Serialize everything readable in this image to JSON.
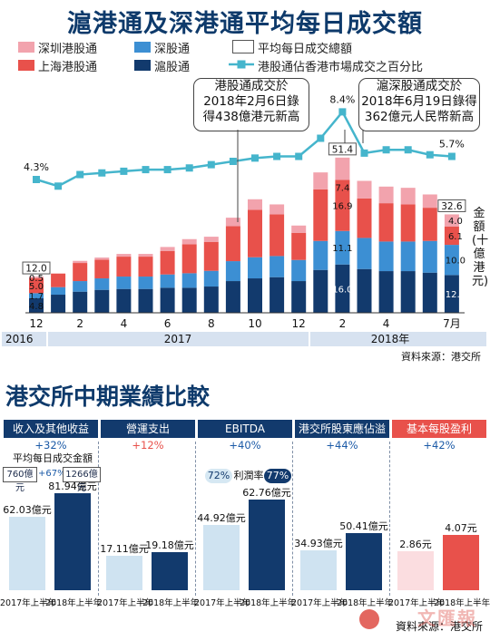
{
  "title": "滬港通及深港通平均每日成交額",
  "legend": {
    "shenzhen_hk": "深圳港股通",
    "sz_connect": "深股通",
    "avg_total": "平均每日成交總額",
    "shanghai_hk": "上海港股通",
    "sh_connect": "滬股通",
    "hk_share": "港股通佔香港市場成交之百分比"
  },
  "colors": {
    "shenzhen_hk": "#f2a3ad",
    "shanghai_hk": "#e8514b",
    "sz_connect": "#3c8fd3",
    "sh_connect": "#123a6d",
    "line": "#45b5cc",
    "timeline_bg": "#d7e2f0"
  },
  "callouts": {
    "left": [
      "港股通成交於",
      "2018年2月6日錄",
      "得438億港元新高"
    ],
    "right": [
      "滬深股通成交於",
      "2018年6月19日錄得",
      "362億元人民幣新高"
    ]
  },
  "y_axis_label": "金額(十億港元)",
  "chart_data": {
    "type": "bar",
    "stacked": true,
    "title": "滬港通及深港通平均每日成交額",
    "ylabel": "金額(十億港元)",
    "ylim": [
      0,
      60
    ],
    "categories": [
      "2016-12",
      "2017-01",
      "2017-02",
      "2017-03",
      "2017-04",
      "2017-05",
      "2017-06",
      "2017-07",
      "2017-08",
      "2017-09",
      "2017-10",
      "2017-11",
      "2017-12",
      "2018-01",
      "2018-02",
      "2018-03",
      "2018-04",
      "2018-05",
      "2018-06",
      "2018-07"
    ],
    "x_tick_labels": [
      "12",
      "",
      "2",
      "",
      "4",
      "",
      "6",
      "",
      "8",
      "",
      "10",
      "",
      "12",
      "",
      "2",
      "",
      "4",
      "",
      "",
      "7月"
    ],
    "year_labels": [
      "2016",
      "2017",
      "2018年"
    ],
    "series": [
      {
        "name": "滬股通",
        "values": [
          4.8,
          6.0,
          7.0,
          7.6,
          7.9,
          7.9,
          8.3,
          8.3,
          8.7,
          10.5,
          11.4,
          11.8,
          10.5,
          14.2,
          16.0,
          14.5,
          13.8,
          13.8,
          13.3,
          12.5
        ]
      },
      {
        "name": "深股通",
        "values": [
          1.7,
          2.5,
          3.5,
          3.8,
          4.1,
          4.1,
          4.4,
          4.8,
          5.2,
          6.6,
          7.0,
          7.0,
          7.0,
          9.6,
          11.1,
          10.3,
          9.8,
          9.8,
          10.5,
          10.0
        ]
      },
      {
        "name": "上海港股通",
        "values": [
          5.0,
          4.5,
          6.0,
          6.2,
          6.6,
          6.6,
          7.8,
          9.6,
          9.6,
          11.6,
          15.7,
          13.8,
          9.0,
          17.1,
          16.9,
          13.1,
          12.7,
          12.3,
          11.0,
          6.1
        ]
      },
      {
        "name": "深圳港股通",
        "values": [
          0.5,
          0.0,
          0.7,
          0.7,
          0.9,
          0.9,
          1.3,
          1.7,
          1.7,
          2.8,
          3.5,
          3.3,
          2.4,
          5.6,
          7.4,
          5.8,
          5.5,
          5.5,
          4.4,
          4.0
        ]
      }
    ],
    "totals": [
      {
        "category": "2016-12",
        "value": 12.0
      },
      {
        "category": "2018-02",
        "value": 51.4
      },
      {
        "category": "2018-07",
        "value": 32.6
      }
    ],
    "line_series": {
      "name": "港股通佔香港市場成交之百分比",
      "values": [
        4.3,
        3.9,
        4.6,
        4.7,
        4.8,
        4.9,
        4.9,
        5.0,
        5.2,
        5.4,
        5.6,
        5.7,
        5.7,
        6.8,
        8.4,
        5.9,
        6.1,
        6.1,
        5.8,
        5.7
      ],
      "labels": {
        "0": "4.3%",
        "14": "8.4%",
        "19": "5.7%"
      }
    },
    "bar_labels": [
      {
        "index": 0,
        "series": "滬股通",
        "text": "4.8"
      },
      {
        "index": 0,
        "series": "深股通",
        "text": "1.7"
      },
      {
        "index": 0,
        "series": "上海港股通",
        "text": "5.0"
      },
      {
        "index": 0,
        "series": "深圳港股通",
        "text": "0.5"
      },
      {
        "index": 14,
        "series": "滬股通",
        "text": "16.0"
      },
      {
        "index": 14,
        "series": "深股通",
        "text": "11.1"
      },
      {
        "index": 14,
        "series": "上海港股通",
        "text": "16.9"
      },
      {
        "index": 14,
        "series": "深圳港股通",
        "text": "7.4"
      },
      {
        "index": 19,
        "series": "滬股通",
        "text": "12.5"
      },
      {
        "index": 19,
        "series": "深股通",
        "text": "10.0"
      },
      {
        "index": 19,
        "series": "上海港股通",
        "text": "6.1"
      },
      {
        "index": 19,
        "series": "深圳港股通",
        "text": "4.0"
      }
    ]
  },
  "source1": "資料來源：港交所",
  "section2": {
    "title": "港交所中期業績比較",
    "panels": [
      {
        "title": "收入及其他收益",
        "growth": "+32%",
        "growth_color": "#1b5aa7",
        "values": [
          62.03,
          81.94
        ],
        "labels": [
          "62.03億元",
          "81.94億元"
        ],
        "periods": [
          "2017年上半年",
          "2018年上半年"
        ],
        "colors": [
          "#cfe3f1",
          "#123a6d"
        ]
      },
      {
        "title": "營運支出",
        "growth": "+12%",
        "growth_color": "#e8514b",
        "values": [
          17.11,
          19.18
        ],
        "labels": [
          "17.11億元",
          "19.18億元"
        ],
        "periods": [
          "2017年上半年",
          "2018年上半年"
        ],
        "colors": [
          "#cfe3f1",
          "#123a6d"
        ]
      },
      {
        "title": "EBITDA",
        "growth": "+40%",
        "growth_color": "#1b5aa7",
        "values": [
          44.92,
          62.76
        ],
        "labels": [
          "44.92億元",
          "62.76億元"
        ],
        "periods": [
          "2017年上半年",
          "2018年上半年"
        ],
        "colors": [
          "#cfe3f1",
          "#123a6d"
        ]
      },
      {
        "title": "港交所股東應佔溢利",
        "growth": "+44%",
        "growth_color": "#1b5aa7",
        "values": [
          34.93,
          50.41
        ],
        "labels": [
          "34.93億元",
          "50.41億元"
        ],
        "periods": [
          "2017年上半年",
          "2018年上半年"
        ],
        "colors": [
          "#cfe3f1",
          "#123a6d"
        ]
      },
      {
        "title": "基本每股盈利",
        "growth": "+42%",
        "growth_color": "#1b5aa7",
        "values": [
          2.86,
          4.07
        ],
        "labels": [
          "2.86元",
          "4.07元"
        ],
        "periods": [
          "2017年上半年",
          "2018年上半年"
        ],
        "colors": [
          "#fbdde0",
          "#e8514b"
        ]
      }
    ],
    "avg_turnover": {
      "label": "平均每日成交金額",
      "before": "760億元",
      "growth": "+67%",
      "after": "1266億元"
    },
    "margin": {
      "before": "72%",
      "label": "利潤率",
      "after": "77%"
    },
    "source": "資料來源：港交所",
    "watermark": "文匯報"
  }
}
